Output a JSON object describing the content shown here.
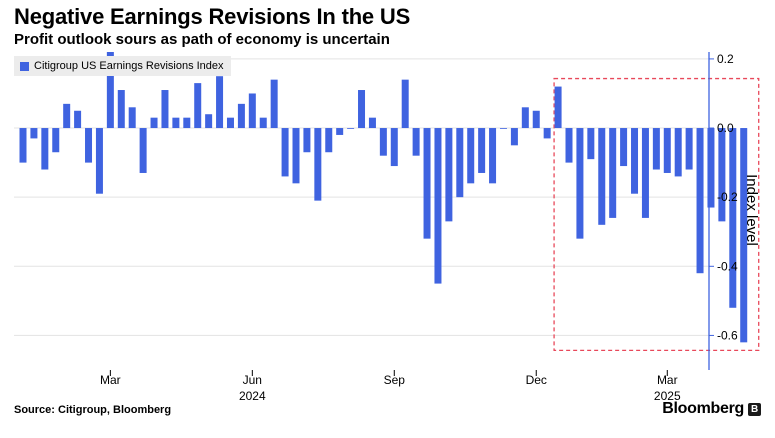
{
  "header": {
    "title": "Negative Earnings Revisions In the US",
    "subtitle": "Profit outlook sours as path of economy is uncertain"
  },
  "legend": {
    "label": "Citigroup US Earnings Revisions Index"
  },
  "footer": {
    "source": "Source: Citigroup, Bloomberg",
    "brand": "Bloomberg",
    "brand_badge": "B"
  },
  "colors": {
    "bar": "#3f63e0",
    "axis": "#3f63e0",
    "grid": "#e3e3e3",
    "highlight_box": "#e8485a"
  },
  "chart_data": {
    "type": "bar",
    "title": "Negative Earnings Revisions In the US",
    "subtitle": "Profit outlook sours as path of economy is uncertain",
    "ylabel": "Index level",
    "ylim": [
      -0.7,
      0.22
    ],
    "yticks": [
      0.2,
      0.0,
      -0.2,
      -0.4,
      -0.6
    ],
    "ytick_labels": [
      "0.2",
      "0.0",
      "-0.2",
      "-0.4",
      "-0.6"
    ],
    "y_axis_side": "right",
    "legend_position": "top-left",
    "grid": true,
    "x_labels": [
      {
        "label": "Mar",
        "year": "",
        "bar_index": 8
      },
      {
        "label": "Jun",
        "year": "2024",
        "bar_index": 21
      },
      {
        "label": "Sep",
        "year": "",
        "bar_index": 34
      },
      {
        "label": "Dec",
        "year": "",
        "bar_index": 47
      },
      {
        "label": "Mar",
        "year": "2025",
        "bar_index": 59
      }
    ],
    "series": [
      {
        "name": "Citigroup US Earnings Revisions Index",
        "values": [
          -0.1,
          -0.03,
          -0.12,
          -0.07,
          0.07,
          0.05,
          -0.1,
          -0.19,
          0.22,
          0.11,
          0.06,
          -0.13,
          0.03,
          0.11,
          0.03,
          0.03,
          0.13,
          0.04,
          0.15,
          0.03,
          0.07,
          0.1,
          0.03,
          0.14,
          -0.14,
          -0.16,
          -0.07,
          -0.21,
          -0.07,
          -0.02,
          0.0,
          0.11,
          0.03,
          -0.08,
          -0.11,
          0.14,
          -0.08,
          -0.32,
          -0.45,
          -0.27,
          -0.2,
          -0.16,
          -0.13,
          -0.16,
          0.0,
          -0.05,
          0.06,
          0.05,
          -0.03,
          0.12,
          -0.1,
          -0.32,
          -0.09,
          -0.28,
          -0.26,
          -0.11,
          -0.19,
          -0.26,
          -0.12,
          -0.13,
          -0.14,
          -0.12,
          -0.42,
          -0.23,
          -0.27,
          -0.52,
          -0.62
        ]
      }
    ],
    "highlight": {
      "from_bar_index": 49,
      "to_bar_index": 66,
      "style": "dashed box"
    }
  }
}
